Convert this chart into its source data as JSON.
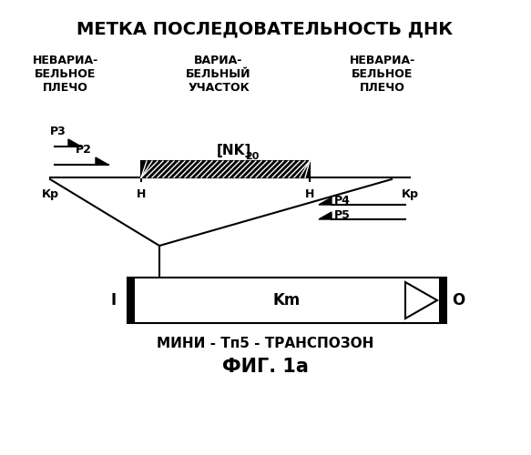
{
  "title": "МЕТКА ПОСЛЕДОВАТЕЛЬНОСТЬ ДНК",
  "col1_label": "НЕВАРИА-\nБЕЛЬНОЕ\nПЛЕЧО",
  "col2_label": "ВАРИА-\nБЕЛЬНЫЙ\nУЧАСТОК",
  "col3_label": "НЕВАРИА-\nБЕЛЬНОЕ\nПЛЕЧО",
  "nk_label": "[NK]",
  "nk_sub": "20",
  "bottom_label1": "МИНИ - Тп5 - ТРАНСПОЗОН",
  "bottom_label2": "ФИГ. 1а",
  "km_label": "Km",
  "left_marker": "I",
  "right_marker": "O",
  "bg_color": "#ffffff",
  "line_color": "#000000"
}
